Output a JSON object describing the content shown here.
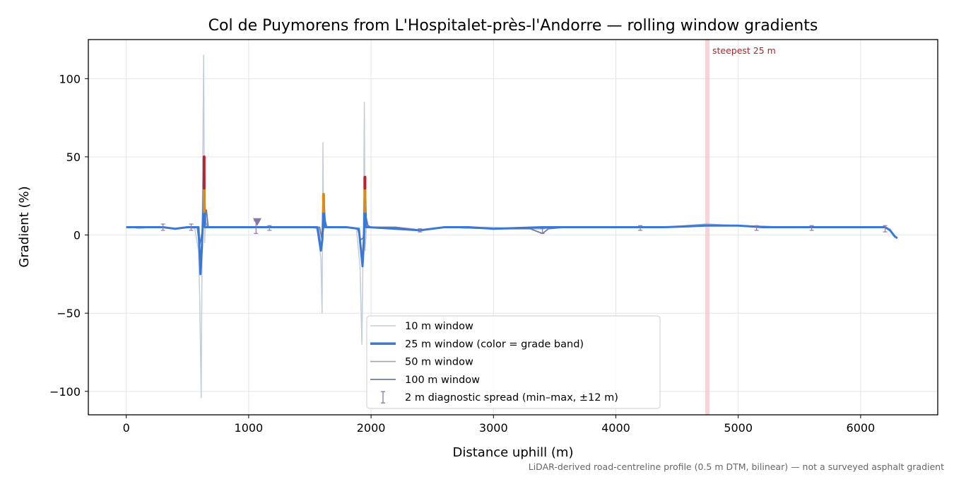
{
  "chart_data": {
    "type": "line",
    "title": "Col de Puymorens from L'Hospitalet-près-l'Andorre — rolling window gradients",
    "xlabel": "Distance uphill (m)",
    "ylabel": "Gradient (%)",
    "xlim": [
      -310,
      6630
    ],
    "ylim": [
      -115,
      125
    ],
    "xticks": [
      0,
      1000,
      2000,
      3000,
      4000,
      5000,
      6000
    ],
    "yticks": [
      100,
      50,
      0,
      -50,
      -100
    ],
    "ytick_labels": [
      "100",
      "50",
      "0",
      "−50",
      "−100"
    ],
    "grid": true,
    "legend_position": "lower center",
    "series": [
      {
        "name": "10 m window",
        "color": "#c4ccd8",
        "x": [
          0,
          50,
          100,
          200,
          300,
          400,
          500,
          560,
          590,
          600,
          612,
          622,
          632,
          640,
          648,
          660,
          700,
          800,
          900,
          1000,
          1100,
          1200,
          1300,
          1400,
          1500,
          1560,
          1590,
          1600,
          1607,
          1612,
          1620,
          1640,
          1700,
          1800,
          1880,
          1910,
          1925,
          1938,
          1945,
          1952,
          1962,
          1980,
          2050,
          2200,
          2350,
          2400,
          2500,
          2600,
          2800,
          3000,
          3200,
          3400,
          3600,
          3800,
          4000,
          4200,
          4400,
          4600,
          4740,
          4800,
          5000,
          5200,
          5400,
          5600,
          5800,
          6000,
          6200,
          6240,
          6280,
          6300
        ],
        "values": [
          5,
          5,
          4,
          5,
          5,
          4,
          5,
          4,
          -10,
          -40,
          -104,
          20,
          115,
          -5,
          10,
          5,
          5,
          5,
          5,
          5,
          5,
          5,
          5,
          5,
          5,
          4,
          -15,
          -50,
          59,
          5,
          5,
          5,
          5,
          5,
          4,
          -20,
          -70,
          10,
          85,
          -10,
          5,
          5,
          5,
          5,
          4,
          3,
          4,
          5,
          5,
          5,
          4,
          5,
          5,
          5,
          5,
          5,
          5,
          5,
          7,
          6,
          6,
          5,
          5,
          5,
          5,
          5,
          5,
          4,
          -1,
          -2
        ]
      },
      {
        "name": "25 m window (color = grade band)",
        "color": "#3a78d8",
        "band_colors": {
          "low": "#3a78d8",
          "mid": "#e08a10",
          "high": "#c0202a"
        },
        "band_thresholds": [
          15,
          30
        ],
        "x": [
          0,
          100,
          200,
          300,
          400,
          500,
          590,
          606,
          618,
          628,
          636,
          642,
          650,
          660,
          800,
          1000,
          1200,
          1400,
          1560,
          1590,
          1602,
          1612,
          1622,
          1640,
          1800,
          1900,
          1930,
          1942,
          1950,
          1958,
          1966,
          1980,
          2200,
          2400,
          2600,
          2800,
          3000,
          3400,
          3600,
          4000,
          4400,
          4740,
          4800,
          5000,
          5200,
          5600,
          6000,
          6200,
          6240,
          6280,
          6300
        ],
        "values": [
          5,
          5,
          5,
          5,
          4,
          5,
          5,
          -25,
          -8,
          15,
          50,
          5,
          5,
          5,
          5,
          5,
          5,
          5,
          5,
          -10,
          -3,
          26,
          5,
          5,
          5,
          4,
          -20,
          -4,
          37,
          5,
          5,
          5,
          4,
          3,
          5,
          5,
          4,
          5,
          5,
          5,
          5,
          6,
          6,
          6,
          5,
          5,
          5,
          5,
          3,
          -1,
          -2
        ]
      },
      {
        "name": "50 m window",
        "color": "#98a6b8",
        "x": [
          0,
          100,
          200,
          300,
          400,
          500,
          590,
          606,
          622,
          632,
          642,
          652,
          665,
          800,
          1000,
          1200,
          1400,
          1570,
          1595,
          1608,
          1618,
          1632,
          1800,
          1900,
          1925,
          1938,
          1950,
          1962,
          1975,
          2200,
          2400,
          2600,
          3000,
          3400,
          3600,
          4000,
          4400,
          4740,
          5000,
          5400,
          5800,
          6200,
          6240,
          6280,
          6300
        ],
        "values": [
          5,
          5,
          5,
          5,
          4,
          5,
          5,
          -15,
          2,
          10,
          22,
          8,
          5,
          5,
          5,
          5,
          5,
          5,
          -8,
          12,
          17,
          5,
          5,
          4,
          -14,
          -2,
          20,
          8,
          5,
          5,
          3,
          5,
          4,
          4,
          5,
          5,
          5,
          7,
          6,
          5,
          5,
          5,
          3,
          -1,
          -2
        ]
      },
      {
        "name": "100 m window",
        "color": "#6e7d93",
        "x": [
          0,
          100,
          200,
          300,
          400,
          500,
          580,
          598,
          618,
          635,
          655,
          670,
          800,
          1000,
          1200,
          1400,
          1580,
          1600,
          1622,
          1640,
          1800,
          1890,
          1915,
          1935,
          1958,
          1975,
          2000,
          2200,
          2400,
          2600,
          3000,
          3300,
          3400,
          3450,
          3600,
          4000,
          4400,
          4740,
          5000,
          5400,
          5800,
          6200,
          6240,
          6280,
          6300
        ],
        "values": [
          5,
          5,
          5,
          5,
          4,
          5,
          5,
          -7,
          1,
          8,
          16,
          5,
          5,
          5,
          5,
          5,
          5,
          -3,
          10,
          5,
          5,
          4,
          -3,
          -2,
          12,
          6,
          5,
          5,
          3,
          5,
          4,
          4,
          1,
          4,
          5,
          5,
          5,
          6,
          6,
          5,
          5,
          5,
          3,
          -1,
          -2
        ]
      },
      {
        "name": "2 m diagnostic spread (min–max, ±12 m)",
        "type": "errorbar",
        "color": "#8878a8",
        "x": [
          300,
          530,
          1060,
          1170,
          2400,
          3400,
          4200,
          5150,
          5600,
          6200
        ],
        "center": [
          5,
          5,
          5,
          5,
          3,
          3,
          5,
          5,
          5,
          4
        ],
        "ymin": [
          3,
          3,
          1,
          3,
          2,
          1,
          3,
          3,
          3,
          2
        ],
        "ymax": [
          7,
          7,
          9,
          6,
          4,
          4,
          6,
          6,
          6,
          6
        ]
      }
    ],
    "markers": [
      {
        "x": 1070,
        "y": 8.5,
        "shape": "triangle-down",
        "color": "#8878a8"
      }
    ],
    "annotations": [
      {
        "text": "steepest 25 m",
        "x_range": [
          4730,
          4765
        ],
        "color": "#f4b8bc"
      }
    ],
    "footnote": "LiDAR-derived road-centreline profile (0.5 m DTM, bilinear) — not a surveyed asphalt gradient"
  }
}
